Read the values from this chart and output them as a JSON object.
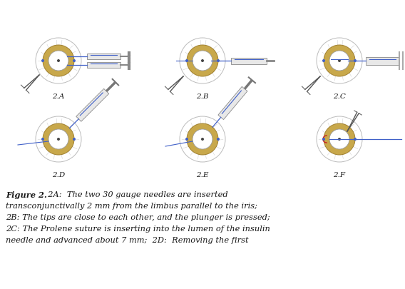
{
  "panel_labels": [
    "2.A",
    "2.B",
    "2.C",
    "2.D",
    "2.E",
    "2.F"
  ],
  "bg_color": "#ffffff",
  "text_color": "#1a1a1a",
  "eye_ring_color": "#c8a84b",
  "eye_ring_dark": "#a08030",
  "eye_outer_color": "#f0f0f0",
  "eye_vessel_color": "#d0d0d0",
  "needle_blue": "#4060c8",
  "needle_dark": "#555555",
  "barrel_fill": "#e8e8e8",
  "barrel_edge": "#888888",
  "suture_red": "#cc2222",
  "label_fontsize": 7.5,
  "caption_fontsize": 8.2,
  "r_out": 32,
  "r_ring": 22,
  "r_inn": 14,
  "panel_centers_x": [
    82,
    284,
    476,
    82,
    284,
    476
  ],
  "panel_centers_y": [
    85,
    85,
    85,
    195,
    195,
    195
  ]
}
